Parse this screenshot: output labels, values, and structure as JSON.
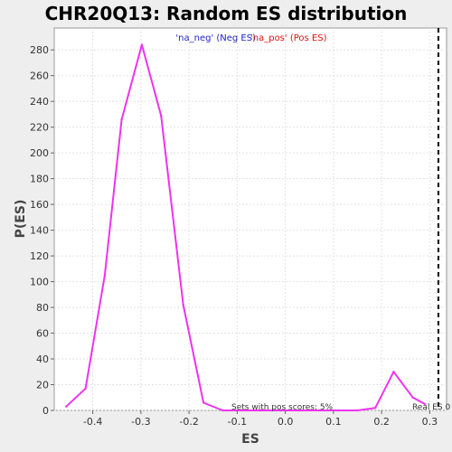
{
  "chart_data": {
    "type": "line",
    "title": "CHR20Q13: Random ES distribution",
    "xlabel": "ES",
    "ylabel": "P(ES)",
    "xlim": [
      -0.48,
      0.335
    ],
    "ylim": [
      0,
      297
    ],
    "grid": true,
    "legend_position": "top-center",
    "xticks": [
      -0.4,
      -0.3,
      -0.2,
      -0.1,
      0.0,
      0.1,
      0.2,
      0.3
    ],
    "xtick_labels": [
      "-0.4",
      "-0.3",
      "-0.2",
      "-0.1",
      "0.0",
      "0.1",
      "0.2",
      "0.3"
    ],
    "yticks": [
      0,
      20,
      40,
      60,
      80,
      100,
      120,
      140,
      160,
      180,
      200,
      220,
      240,
      260,
      280
    ],
    "ytick_labels": [
      "0",
      "20",
      "40",
      "60",
      "80",
      "100",
      "120",
      "140",
      "160",
      "180",
      "200",
      "220",
      "240",
      "260",
      "280"
    ],
    "legend": [
      {
        "label": "'na_neg' (Neg ES)",
        "color": "#2222cc"
      },
      {
        "label": "'na_pos' (Pos ES)",
        "color": "#dd1111"
      }
    ],
    "series": [
      {
        "color": "#ee33ee",
        "x": [
          -0.455,
          -0.415,
          -0.375,
          -0.34,
          -0.298,
          -0.258,
          -0.212,
          -0.17,
          -0.13,
          -0.09,
          -0.05,
          -0.01,
          0.03,
          0.07,
          0.11,
          0.15,
          0.187,
          0.225,
          0.265,
          0.29
        ],
        "y": [
          3,
          17,
          105,
          226,
          284,
          229,
          82,
          6,
          0,
          0,
          0,
          0,
          0,
          0,
          0,
          0,
          2,
          30,
          10,
          5
        ]
      }
    ],
    "real_es_line": {
      "x": 0.318,
      "label": "Real ES 0"
    },
    "annotation": "Sets with pos scores: 5%"
  }
}
